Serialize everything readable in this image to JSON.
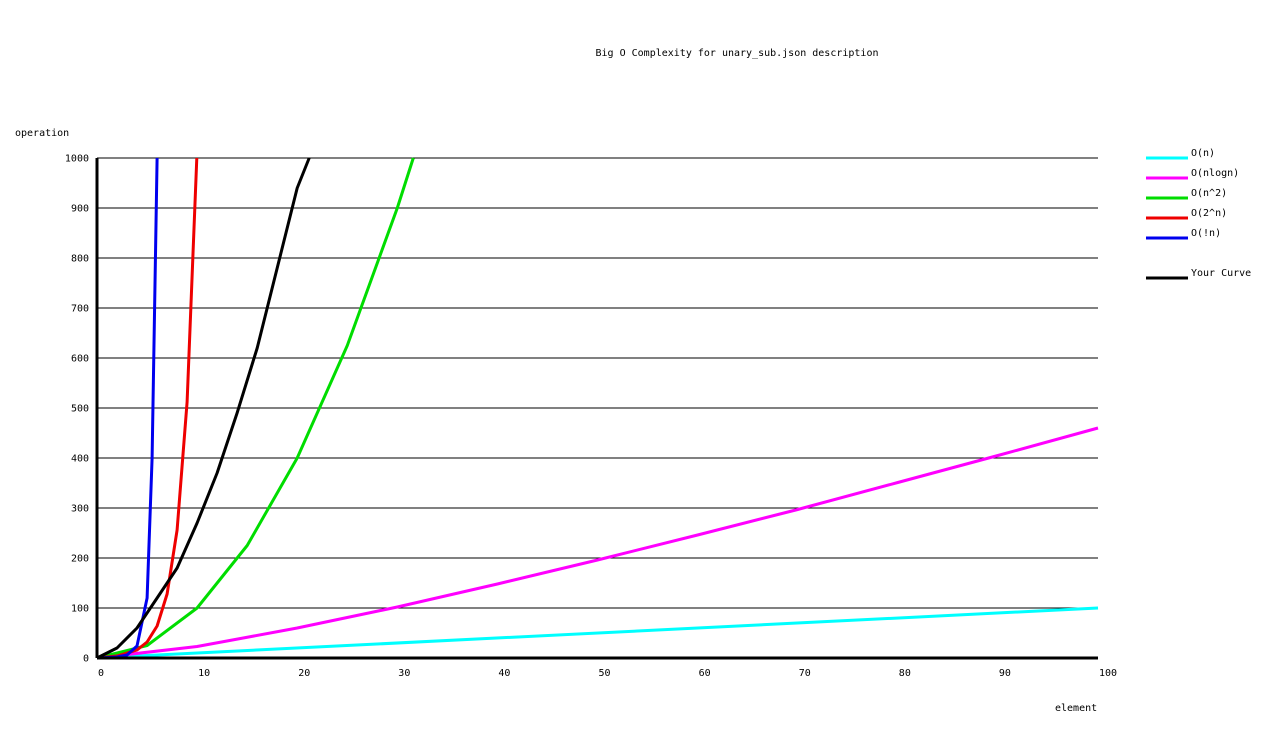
{
  "chart_data": {
    "type": "line",
    "title": "Big O Complexity for unary_sub.json description",
    "xlabel": "element",
    "ylabel": "operation",
    "xlim": [
      0,
      100
    ],
    "ylim": [
      0,
      1000
    ],
    "x_ticks": [
      0,
      10,
      20,
      30,
      40,
      50,
      60,
      70,
      80,
      90,
      100
    ],
    "y_ticks": [
      0,
      100,
      200,
      300,
      400,
      500,
      600,
      700,
      800,
      900,
      1000
    ],
    "grid": "horizontal",
    "legend_position": "right",
    "series": [
      {
        "name": "O(n)",
        "color": "#00ffff",
        "x": [
          0,
          100
        ],
        "y": [
          0,
          100
        ]
      },
      {
        "name": "O(nlogn)",
        "color": "#ff00ff",
        "x": [
          0,
          10,
          20,
          30,
          40,
          50,
          60,
          70,
          80,
          90,
          100
        ],
        "y": [
          0,
          23,
          60,
          102,
          148,
          196,
          246,
          297,
          351,
          405,
          460
        ]
      },
      {
        "name": "O(n^2)",
        "color": "#00dd00",
        "x": [
          0,
          5,
          10,
          15,
          20,
          25,
          30,
          31.6
        ],
        "y": [
          0,
          25,
          100,
          225,
          400,
          625,
          900,
          1000
        ]
      },
      {
        "name": "O(2^n)",
        "color": "#ee0000",
        "x": [
          0,
          2,
          4,
          5,
          6,
          7,
          8,
          9,
          9.97
        ],
        "y": [
          0,
          4,
          16,
          32,
          64,
          128,
          256,
          512,
          1000
        ]
      },
      {
        "name": "O(!n)",
        "color": "#0000ee",
        "x": [
          0,
          1,
          2,
          3,
          4,
          5,
          5.5,
          6
        ],
        "y": [
          0,
          1,
          2,
          6,
          24,
          120,
          400,
          1000
        ]
      },
      {
        "name": "Your Curve",
        "color": "#000000",
        "gap_before": true,
        "x": [
          0,
          2,
          4,
          6,
          8,
          10,
          12,
          14,
          16,
          18,
          20,
          21.2
        ],
        "y": [
          0,
          20,
          60,
          120,
          180,
          270,
          370,
          490,
          620,
          780,
          940,
          1000
        ]
      }
    ]
  }
}
